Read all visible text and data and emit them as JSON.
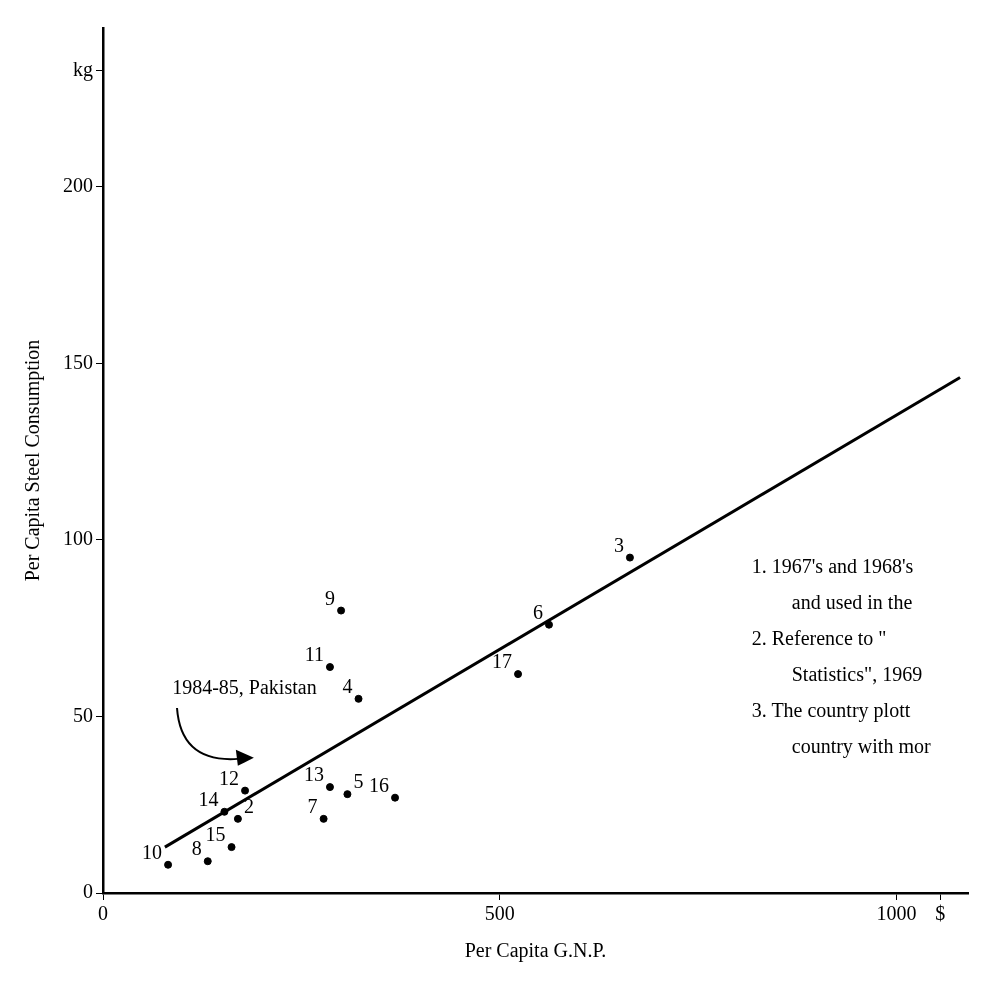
{
  "chart_data": {
    "type": "scatter",
    "xlabel": "Per Capita G.N.P.",
    "ylabel": "Per Capita Steel Consumption",
    "xlim": [
      0,
      1090
    ],
    "xticks": [
      0,
      500,
      1000,
      {
        "value": 1055,
        "label": "$"
      }
    ],
    "ylim": [
      0,
      245
    ],
    "yticks": [
      0,
      50,
      100,
      150,
      200,
      {
        "value": 233,
        "label": "kg"
      }
    ],
    "series": [
      {
        "type": "scatter",
        "color": "#000000",
        "marker": "circle",
        "x": [
          170,
          664,
          322,
          308,
          562,
          278,
          132,
          300,
          82,
          286,
          179,
          286,
          153,
          162,
          368,
          523
        ],
        "values": [
          21,
          95,
          55,
          28,
          76,
          21,
          9,
          80,
          8,
          64,
          29,
          30,
          23,
          13,
          27,
          62
        ]
      },
      {
        "type": "line",
        "color": "#000000",
        "marker": "none",
        "line_style": "solid",
        "x": [
          78,
          1080
        ],
        "values": [
          13,
          146
        ]
      }
    ],
    "annotations": [
      {
        "text": "2",
        "x": 170,
        "y": 21
      },
      {
        "text": "3",
        "x": 664,
        "y": 95
      },
      {
        "text": "4",
        "x": 322,
        "y": 55
      },
      {
        "text": "5",
        "x": 308,
        "y": 28
      },
      {
        "text": "6",
        "x": 562,
        "y": 76
      },
      {
        "text": "7",
        "x": 278,
        "y": 21
      },
      {
        "text": "8",
        "x": 132,
        "y": 9
      },
      {
        "text": "9",
        "x": 300,
        "y": 80
      },
      {
        "text": "10",
        "x": 82,
        "y": 8
      },
      {
        "text": "11",
        "x": 286,
        "y": 64
      },
      {
        "text": "12",
        "x": 179,
        "y": 29
      },
      {
        "text": "13",
        "x": 286,
        "y": 30
      },
      {
        "text": "14",
        "x": 153,
        "y": 23
      },
      {
        "text": "15",
        "x": 162,
        "y": 13
      },
      {
        "text": "16",
        "x": 368,
        "y": 27
      },
      {
        "text": "17",
        "x": 523,
        "y": 62
      },
      "1984-85, Pakistan",
      "1. 1967's and 1968's",
      "and used in the",
      "2. Reference to \"",
      "Statistics\", 1969",
      "3. The country plott",
      "country with mor"
    ]
  }
}
